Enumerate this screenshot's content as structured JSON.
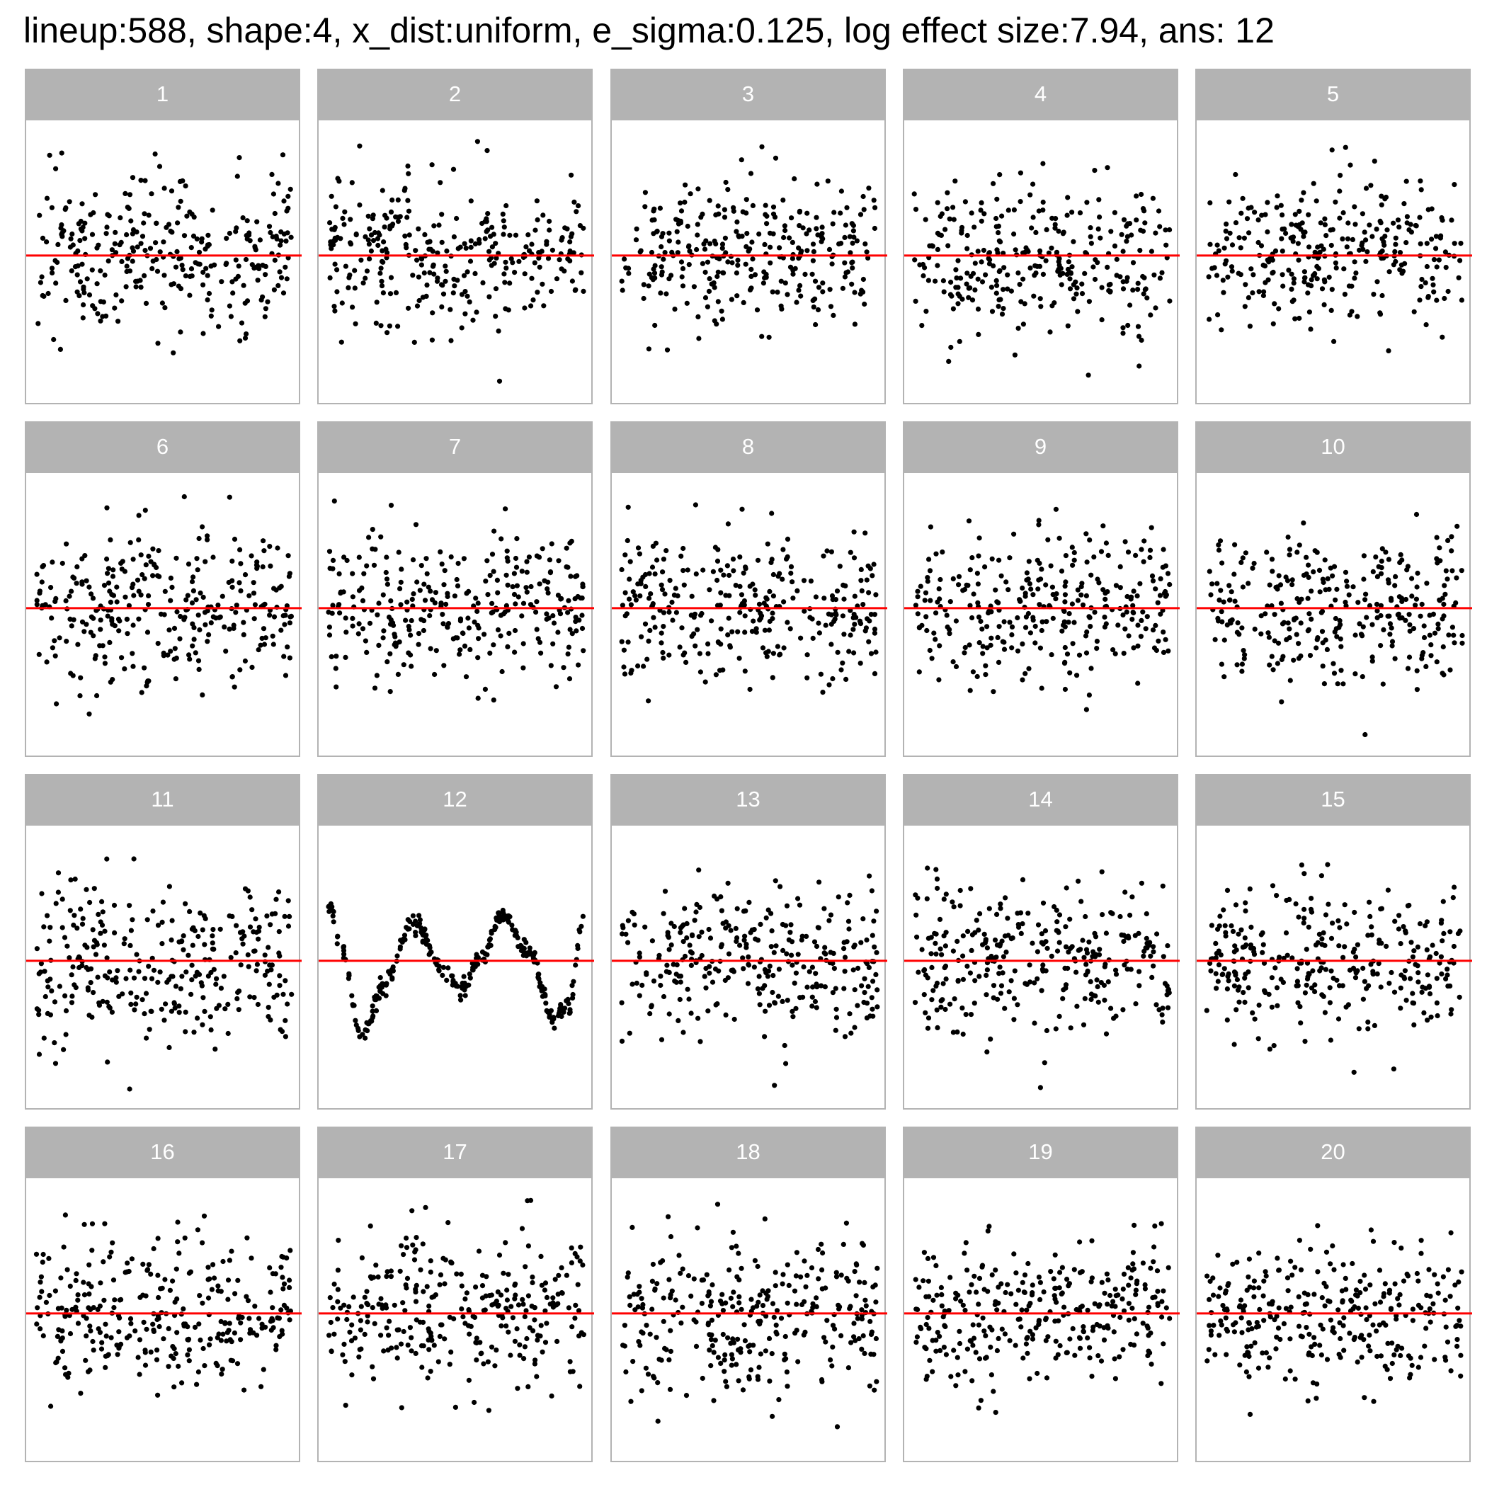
{
  "title": "lineup:588, shape:4, x_dist:uniform, e_sigma:0.125, log effect size:7.94, ans: 12",
  "colors": {
    "strip": "#b3b3b3",
    "reference_line": "#ff0000",
    "points": "#000000",
    "border": "#b3b3b3"
  },
  "chart_data": {
    "type": "scatter",
    "layout": "4x5 lineup facet grid",
    "grid": false,
    "axes_shown": false,
    "xlim": [
      0,
      1
    ],
    "ylim": [
      -2.8,
      2.5
    ],
    "reference_line_y": 0,
    "answer_panel": 12,
    "panels": [
      {
        "label": "1",
        "pattern": "noise"
      },
      {
        "label": "2",
        "pattern": "noise"
      },
      {
        "label": "3",
        "pattern": "noise"
      },
      {
        "label": "4",
        "pattern": "noise"
      },
      {
        "label": "5",
        "pattern": "noise"
      },
      {
        "label": "6",
        "pattern": "noise"
      },
      {
        "label": "7",
        "pattern": "noise"
      },
      {
        "label": "8",
        "pattern": "noise"
      },
      {
        "label": "9",
        "pattern": "noise"
      },
      {
        "label": "10",
        "pattern": "noise"
      },
      {
        "label": "11",
        "pattern": "noise"
      },
      {
        "label": "12",
        "pattern": "wave"
      },
      {
        "label": "13",
        "pattern": "noise"
      },
      {
        "label": "14",
        "pattern": "noise"
      },
      {
        "label": "15",
        "pattern": "noise"
      },
      {
        "label": "16",
        "pattern": "noise"
      },
      {
        "label": "17",
        "pattern": "noise"
      },
      {
        "label": "18",
        "pattern": "noise"
      },
      {
        "label": "19",
        "pattern": "noise"
      },
      {
        "label": "20",
        "pattern": "noise"
      }
    ],
    "answer_curve_knots": {
      "x": [
        0.0,
        0.05,
        0.13,
        0.22,
        0.33,
        0.45,
        0.52,
        0.6,
        0.68,
        0.78,
        0.88,
        0.94,
        1.0
      ],
      "y": [
        1.1,
        0.2,
        -1.5,
        -0.5,
        0.8,
        -0.2,
        -0.6,
        0.1,
        0.9,
        0.2,
        -1.1,
        -0.9,
        0.9
      ]
    }
  }
}
